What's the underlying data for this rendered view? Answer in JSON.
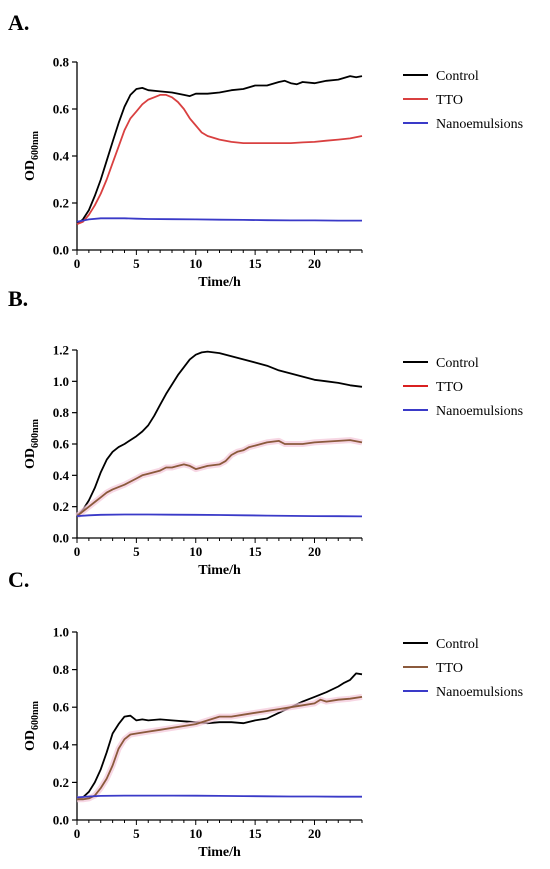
{
  "chart_data": [
    {
      "type": "line",
      "panel_label": "A.",
      "xlabel": "Time/h",
      "ylabel": "OD",
      "ylabel_sub": "600nm",
      "xlim": [
        0,
        24
      ],
      "ylim": [
        0,
        0.8
      ],
      "xticks": [
        0,
        5,
        10,
        15,
        20
      ],
      "yticks": [
        0.0,
        0.2,
        0.4,
        0.6,
        0.8
      ],
      "ytick_labels": [
        "0.0",
        "0.2",
        "0.4",
        "0.6",
        "0.8"
      ],
      "grid": false,
      "legend_position": "right",
      "series": [
        {
          "name": "Control",
          "color": "#000000",
          "legend_color": "#000000",
          "x": [
            0,
            0.5,
            1,
            1.5,
            2,
            2.5,
            3,
            3.5,
            4,
            4.5,
            5,
            5.5,
            6,
            7,
            8,
            9,
            9.5,
            10,
            11,
            12,
            13,
            14,
            15,
            16,
            17,
            17.5,
            18,
            18.5,
            19,
            20,
            21,
            22,
            23,
            23.5,
            24
          ],
          "y": [
            0.11,
            0.13,
            0.17,
            0.23,
            0.3,
            0.38,
            0.46,
            0.54,
            0.61,
            0.66,
            0.685,
            0.69,
            0.68,
            0.675,
            0.67,
            0.66,
            0.655,
            0.665,
            0.665,
            0.67,
            0.68,
            0.685,
            0.7,
            0.7,
            0.715,
            0.72,
            0.71,
            0.705,
            0.715,
            0.71,
            0.72,
            0.725,
            0.74,
            0.735,
            0.74
          ]
        },
        {
          "name": "TTO",
          "color": "#d94040",
          "legend_color": "#d94040",
          "x": [
            0,
            0.5,
            1,
            1.5,
            2,
            2.5,
            3,
            3.5,
            4,
            4.5,
            5,
            5.5,
            6,
            6.5,
            7,
            7.5,
            8,
            8.5,
            9,
            9.5,
            10,
            10.5,
            11,
            12,
            13,
            14,
            15,
            16,
            17,
            18,
            19,
            20,
            21,
            22,
            23,
            24
          ],
          "y": [
            0.11,
            0.12,
            0.15,
            0.19,
            0.24,
            0.3,
            0.37,
            0.44,
            0.51,
            0.56,
            0.59,
            0.62,
            0.64,
            0.65,
            0.66,
            0.66,
            0.65,
            0.63,
            0.6,
            0.56,
            0.53,
            0.5,
            0.485,
            0.47,
            0.46,
            0.455,
            0.455,
            0.455,
            0.455,
            0.455,
            0.458,
            0.46,
            0.465,
            0.47,
            0.475,
            0.485
          ]
        },
        {
          "name": "Nanoemulsions",
          "color": "#3a3ac8",
          "legend_color": "#3a3ac8",
          "x": [
            0,
            1,
            2,
            3,
            4,
            5,
            6,
            8,
            10,
            12,
            14,
            16,
            18,
            20,
            22,
            24
          ],
          "y": [
            0.12,
            0.13,
            0.135,
            0.135,
            0.135,
            0.133,
            0.132,
            0.131,
            0.13,
            0.129,
            0.128,
            0.127,
            0.126,
            0.126,
            0.125,
            0.125
          ]
        }
      ]
    },
    {
      "type": "line",
      "panel_label": "B.",
      "xlabel": "Time/h",
      "ylabel": "OD",
      "ylabel_sub": "600nm",
      "xlim": [
        0,
        24
      ],
      "ylim": [
        0,
        1.2
      ],
      "xticks": [
        0,
        5,
        10,
        15,
        20
      ],
      "yticks": [
        0.0,
        0.2,
        0.4,
        0.6,
        0.8,
        1.0,
        1.2
      ],
      "ytick_labels": [
        "0.0",
        "0.2",
        "0.4",
        "0.6",
        "0.8",
        "1.0",
        "1.2"
      ],
      "grid": false,
      "legend_position": "right",
      "series": [
        {
          "name": "Control",
          "color": "#000000",
          "legend_color": "#000000",
          "x": [
            0,
            0.5,
            1,
            1.5,
            2,
            2.5,
            3,
            3.5,
            4,
            5,
            5.5,
            6,
            6.5,
            7,
            7.5,
            8,
            8.5,
            9,
            9.5,
            10,
            10.5,
            11,
            12,
            13,
            14,
            15,
            16,
            17,
            18,
            19,
            20,
            21,
            22,
            23,
            24
          ],
          "y": [
            0.14,
            0.18,
            0.24,
            0.32,
            0.42,
            0.5,
            0.55,
            0.58,
            0.6,
            0.65,
            0.68,
            0.72,
            0.78,
            0.85,
            0.92,
            0.98,
            1.04,
            1.09,
            1.14,
            1.17,
            1.185,
            1.19,
            1.18,
            1.16,
            1.14,
            1.12,
            1.1,
            1.07,
            1.05,
            1.03,
            1.01,
            1.0,
            0.99,
            0.975,
            0.965
          ]
        },
        {
          "name": "TTO",
          "color": "#8b5a3c",
          "legend_color": "#d92020",
          "x": [
            0,
            0.5,
            1,
            1.5,
            2,
            2.5,
            3,
            4,
            5,
            5.5,
            6,
            7,
            7.5,
            8,
            8.5,
            9,
            9.5,
            10,
            10.5,
            11,
            12,
            12.5,
            13,
            13.5,
            14,
            14.5,
            15,
            16,
            17,
            17.5,
            18,
            19,
            20,
            21,
            22,
            23,
            24
          ],
          "y": [
            0.14,
            0.17,
            0.2,
            0.23,
            0.26,
            0.29,
            0.31,
            0.34,
            0.38,
            0.4,
            0.41,
            0.43,
            0.45,
            0.45,
            0.46,
            0.47,
            0.46,
            0.44,
            0.45,
            0.46,
            0.47,
            0.49,
            0.53,
            0.55,
            0.56,
            0.58,
            0.59,
            0.61,
            0.62,
            0.6,
            0.6,
            0.6,
            0.61,
            0.615,
            0.62,
            0.625,
            0.61
          ]
        },
        {
          "name": "Nanoemulsions",
          "color": "#3a3ac8",
          "legend_color": "#3a3ac8",
          "x": [
            0,
            1,
            2,
            4,
            6,
            8,
            10,
            12,
            14,
            16,
            18,
            20,
            22,
            24
          ],
          "y": [
            0.14,
            0.145,
            0.148,
            0.15,
            0.15,
            0.149,
            0.148,
            0.147,
            0.145,
            0.143,
            0.141,
            0.14,
            0.139,
            0.138
          ]
        }
      ]
    },
    {
      "type": "line",
      "panel_label": "C.",
      "xlabel": "Time/h",
      "ylabel": "OD",
      "ylabel_sub": "600nm",
      "xlim": [
        0,
        24
      ],
      "ylim": [
        0,
        1.0
      ],
      "xticks": [
        0,
        5,
        10,
        15,
        20
      ],
      "yticks": [
        0.0,
        0.2,
        0.4,
        0.6,
        0.8,
        1.0
      ],
      "ytick_labels": [
        "0.0",
        "0.2",
        "0.4",
        "0.6",
        "0.8",
        "1.0"
      ],
      "grid": false,
      "legend_position": "right",
      "series": [
        {
          "name": "Control",
          "color": "#000000",
          "legend_color": "#000000",
          "x": [
            0,
            0.5,
            1,
            1.5,
            2,
            2.5,
            3,
            3.5,
            4,
            4.5,
            5,
            5.5,
            6,
            7,
            8,
            9,
            10,
            11,
            12,
            13,
            14,
            15,
            16,
            17,
            18,
            19,
            20,
            21,
            22,
            22.5,
            23,
            23.5,
            24
          ],
          "y": [
            0.11,
            0.12,
            0.15,
            0.2,
            0.27,
            0.36,
            0.46,
            0.51,
            0.55,
            0.555,
            0.53,
            0.535,
            0.53,
            0.535,
            0.53,
            0.525,
            0.52,
            0.515,
            0.52,
            0.52,
            0.515,
            0.53,
            0.54,
            0.57,
            0.6,
            0.63,
            0.655,
            0.68,
            0.71,
            0.73,
            0.745,
            0.78,
            0.775
          ]
        },
        {
          "name": "TTO",
          "color": "#8b5a3c",
          "legend_color": "#8b5a3c",
          "x": [
            0,
            0.5,
            1,
            1.5,
            2,
            2.5,
            3,
            3.5,
            4,
            4.5,
            5,
            6,
            7,
            8,
            9,
            10,
            11,
            12,
            13,
            14,
            15,
            16,
            17,
            18,
            19,
            20,
            20.5,
            21,
            22,
            23,
            24
          ],
          "y": [
            0.11,
            0.11,
            0.115,
            0.13,
            0.17,
            0.22,
            0.29,
            0.38,
            0.43,
            0.455,
            0.46,
            0.47,
            0.48,
            0.49,
            0.5,
            0.51,
            0.53,
            0.55,
            0.55,
            0.56,
            0.57,
            0.58,
            0.59,
            0.6,
            0.61,
            0.62,
            0.64,
            0.63,
            0.64,
            0.645,
            0.655
          ]
        },
        {
          "name": "Nanoemulsions",
          "color": "#3a3ac8",
          "legend_color": "#3a3ac8",
          "x": [
            0,
            1,
            2,
            4,
            6,
            8,
            10,
            12,
            14,
            16,
            18,
            20,
            22,
            24
          ],
          "y": [
            0.12,
            0.125,
            0.128,
            0.13,
            0.13,
            0.13,
            0.129,
            0.128,
            0.127,
            0.126,
            0.125,
            0.125,
            0.124,
            0.124
          ]
        }
      ]
    }
  ]
}
